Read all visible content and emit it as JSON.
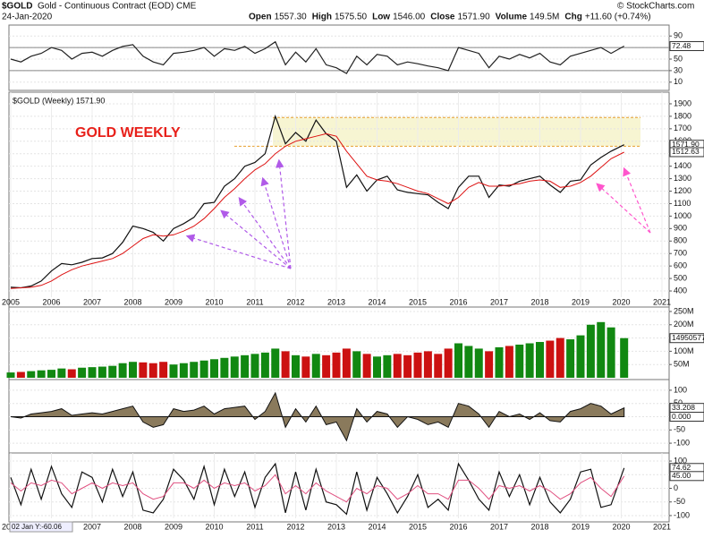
{
  "header": {
    "symbol": "$GOLD",
    "name": "Gold - Continuous Contract (EOD) CME",
    "date": "24-Jan-2020",
    "credit": "© StockCharts.com",
    "quote": [
      {
        "label": "Open",
        "value": "1557.30"
      },
      {
        "label": "High",
        "value": "1575.50"
      },
      {
        "label": "Low",
        "value": "1546.00"
      },
      {
        "label": "Close",
        "value": "1571.90"
      },
      {
        "label": "Volume",
        "value": "149.5M"
      },
      {
        "label": "Chg",
        "value": "+11.60 (+0.74%)"
      }
    ],
    "cursor_label": "02 Jan Y:-60.06"
  },
  "chart_data": [
    {
      "type": "line",
      "ylim": [
        5,
        95
      ],
      "yticks": [
        10,
        30,
        50,
        70,
        90
      ],
      "reference_lines": [
        70,
        30
      ],
      "series": [
        {
          "color": "#222222",
          "values": [
            50,
            45,
            55,
            60,
            70,
            65,
            50,
            60,
            62,
            55,
            65,
            72,
            75,
            55,
            45,
            40,
            60,
            62,
            65,
            70,
            55,
            68,
            65,
            72,
            60,
            68,
            80,
            40,
            62,
            45,
            68,
            40,
            35,
            25,
            55,
            40,
            58,
            55,
            40,
            45,
            42,
            38,
            35,
            30,
            70,
            65,
            60,
            35,
            55,
            50,
            58,
            52,
            60,
            45,
            40,
            55,
            60,
            65,
            70,
            60,
            72.48
          ]
        }
      ],
      "markers": [
        {
          "value": 72.48,
          "label": "72.48"
        }
      ]
    },
    {
      "type": "line",
      "title": "$GOLD (Weekly) 1571.90",
      "annotation": "GOLD WEEKLY",
      "grid": true,
      "x": [
        2005,
        2005.25,
        2005.5,
        2005.75,
        2006,
        2006.25,
        2006.5,
        2006.75,
        2007,
        2007.25,
        2007.5,
        2007.75,
        2008,
        2008.25,
        2008.5,
        2008.75,
        2009,
        2009.25,
        2009.5,
        2009.75,
        2010,
        2010.25,
        2010.5,
        2010.75,
        2011,
        2011.25,
        2011.5,
        2011.75,
        2012,
        2012.25,
        2012.5,
        2012.75,
        2013,
        2013.25,
        2013.5,
        2013.75,
        2014,
        2014.25,
        2014.5,
        2014.75,
        2015,
        2015.25,
        2015.5,
        2015.75,
        2016,
        2016.25,
        2016.5,
        2016.75,
        2017,
        2017.25,
        2017.5,
        2017.75,
        2018,
        2018.25,
        2018.5,
        2018.75,
        2019,
        2019.25,
        2019.5,
        2019.75,
        2020.07
      ],
      "xlim": [
        2005,
        2021
      ],
      "xticks": [
        2005,
        2006,
        2007,
        2008,
        2009,
        2010,
        2011,
        2012,
        2013,
        2014,
        2015,
        2016,
        2017,
        2018,
        2019,
        2020,
        2021
      ],
      "ylim": [
        350,
        1950
      ],
      "yticks": [
        400,
        500,
        600,
        700,
        800,
        900,
        1000,
        1100,
        1200,
        1300,
        1400,
        1500,
        1600,
        1700,
        1800,
        1900
      ],
      "band": [
        1560,
        1790
      ],
      "hlines": [
        1790,
        1560
      ],
      "series": [
        {
          "color": "#111111",
          "values": [
            430,
            425,
            440,
            480,
            560,
            620,
            610,
            630,
            660,
            665,
            700,
            790,
            920,
            900,
            870,
            800,
            900,
            940,
            990,
            1100,
            1110,
            1240,
            1300,
            1400,
            1430,
            1500,
            1800,
            1580,
            1670,
            1600,
            1770,
            1660,
            1600,
            1230,
            1330,
            1200,
            1290,
            1320,
            1210,
            1190,
            1180,
            1170,
            1110,
            1060,
            1230,
            1320,
            1320,
            1150,
            1250,
            1240,
            1280,
            1300,
            1320,
            1250,
            1190,
            1280,
            1290,
            1410,
            1470,
            1520,
            1571.9
          ]
        },
        {
          "color": "#dd1111",
          "values": [
            420,
            425,
            430,
            445,
            480,
            530,
            570,
            600,
            620,
            640,
            660,
            700,
            760,
            820,
            850,
            840,
            850,
            880,
            920,
            980,
            1060,
            1150,
            1220,
            1300,
            1370,
            1420,
            1500,
            1560,
            1600,
            1620,
            1640,
            1660,
            1640,
            1520,
            1420,
            1320,
            1290,
            1280,
            1260,
            1230,
            1200,
            1180,
            1140,
            1100,
            1150,
            1230,
            1270,
            1240,
            1240,
            1250,
            1260,
            1280,
            1290,
            1280,
            1230,
            1240,
            1270,
            1320,
            1390,
            1460,
            1512.63
          ]
        }
      ],
      "markers": [
        {
          "value": 1571.9,
          "label": "1571.90"
        },
        {
          "value": 1512.63,
          "label": "1512.63"
        }
      ]
    },
    {
      "type": "bar",
      "ylim": [
        0,
        260000000
      ],
      "yticks": [
        {
          "value": 50000000,
          "label": "50M"
        },
        {
          "value": 100000000,
          "label": "100M"
        },
        {
          "value": 150000000,
          "label": "150M"
        },
        {
          "value": 200000000,
          "label": "200M"
        },
        {
          "value": 250000000,
          "label": "250M"
        }
      ],
      "colors": [
        "#118811",
        "#cc1111"
      ],
      "values": [
        20000000,
        22000000,
        25000000,
        28000000,
        30000000,
        35000000,
        32000000,
        38000000,
        40000000,
        42000000,
        45000000,
        55000000,
        60000000,
        58000000,
        55000000,
        60000000,
        50000000,
        55000000,
        60000000,
        65000000,
        70000000,
        75000000,
        80000000,
        85000000,
        90000000,
        95000000,
        110000000,
        100000000,
        85000000,
        80000000,
        90000000,
        85000000,
        95000000,
        110000000,
        100000000,
        90000000,
        80000000,
        85000000,
        90000000,
        85000000,
        95000000,
        100000000,
        90000000,
        110000000,
        130000000,
        120000000,
        110000000,
        100000000,
        115000000,
        120000000,
        125000000,
        130000000,
        135000000,
        140000000,
        150000000,
        145000000,
        160000000,
        200000000,
        210000000,
        190000000,
        149505776
      ],
      "markers": [
        {
          "value": 149505776,
          "label": "149505776"
        }
      ]
    },
    {
      "type": "area",
      "ylim": [
        -120,
        120
      ],
      "yticks": [
        -100,
        -50,
        0,
        50,
        100
      ],
      "color": "#8a7a5c",
      "values": [
        0,
        -5,
        10,
        15,
        20,
        30,
        5,
        10,
        15,
        10,
        20,
        30,
        40,
        -20,
        -40,
        -30,
        30,
        20,
        25,
        40,
        10,
        30,
        35,
        40,
        -10,
        20,
        90,
        -40,
        30,
        -20,
        40,
        -30,
        -20,
        -90,
        30,
        -20,
        20,
        10,
        -40,
        0,
        -10,
        -30,
        -20,
        -40,
        50,
        40,
        10,
        -40,
        20,
        0,
        10,
        -10,
        15,
        -15,
        -20,
        20,
        30,
        50,
        40,
        10,
        33.208
      ],
      "markers": [
        {
          "value": 33.208,
          "label": "33.208"
        },
        {
          "value": 0,
          "label": "0.000"
        }
      ]
    },
    {
      "type": "line",
      "ylim": [
        -110,
        110
      ],
      "yticks": [
        -100,
        -50,
        0,
        50,
        100
      ],
      "xticks": [
        2005,
        2006,
        2007,
        2008,
        2009,
        2010,
        2011,
        2012,
        2013,
        2014,
        2015,
        2016,
        2017,
        2018,
        2019,
        2020,
        2021
      ],
      "series": [
        {
          "color": "#111111",
          "values": [
            40,
            -60,
            70,
            -40,
            80,
            -20,
            -70,
            60,
            40,
            -50,
            70,
            -30,
            60,
            -80,
            -90,
            -40,
            70,
            30,
            -40,
            80,
            -60,
            70,
            -30,
            60,
            -70,
            40,
            90,
            -90,
            60,
            -80,
            70,
            -50,
            -60,
            -95,
            60,
            -80,
            40,
            -20,
            -90,
            -30,
            50,
            -70,
            -40,
            -80,
            90,
            30,
            -40,
            -80,
            60,
            -30,
            50,
            -60,
            40,
            -50,
            -90,
            -40,
            60,
            70,
            -70,
            -60,
            74.62
          ]
        },
        {
          "color": "#e05080",
          "values": [
            20,
            -10,
            20,
            10,
            30,
            20,
            -20,
            0,
            20,
            0,
            20,
            10,
            20,
            -20,
            -40,
            -30,
            20,
            20,
            0,
            30,
            0,
            20,
            10,
            20,
            -10,
            10,
            50,
            -20,
            10,
            -20,
            20,
            -10,
            -30,
            -50,
            0,
            -20,
            10,
            0,
            -40,
            -20,
            10,
            -20,
            -20,
            -40,
            30,
            30,
            0,
            -40,
            10,
            0,
            10,
            -10,
            10,
            -10,
            -40,
            -20,
            20,
            40,
            0,
            -30,
            45
          ]
        }
      ],
      "markers": [
        {
          "value": 74.62,
          "label": "74.62"
        },
        {
          "value": 45,
          "label": "45.00"
        }
      ]
    }
  ]
}
